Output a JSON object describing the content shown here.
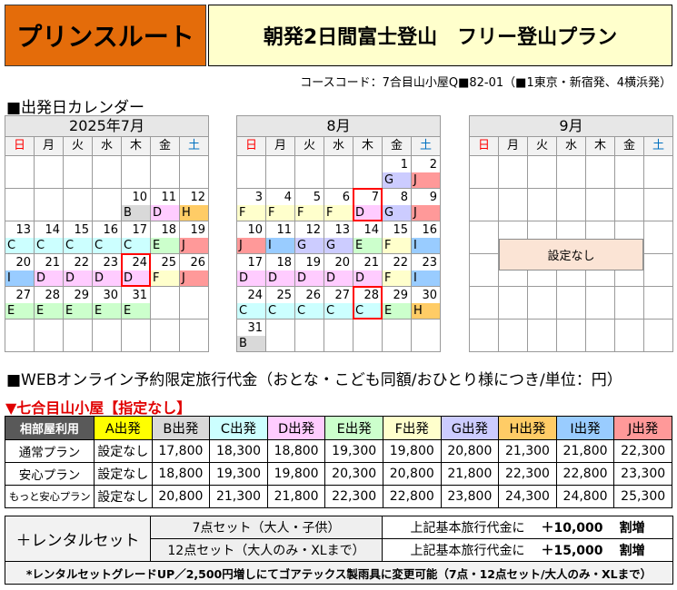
{
  "header": {
    "route_name": "プリンスルート",
    "route_color": "#e46c0a",
    "plan_title": "朝発2日間富士登山　フリー登山プラン",
    "plan_color": "#ffffcc",
    "course_code": "コースコード：7合目山小屋Q■82-01（■1東京・新宿発、4横浜発）"
  },
  "calendar": {
    "title": "■出発日カレンダー",
    "weekdays": [
      "日",
      "月",
      "火",
      "水",
      "木",
      "金",
      "土"
    ],
    "sunday_color": "#ff0000",
    "saturday_color": "#0070c0",
    "highlight_color": "#ff0000",
    "months": [
      {
        "title": "2025年7月",
        "weeks": [
          [
            null,
            null,
            null,
            null,
            null,
            null,
            null
          ],
          [
            null,
            null,
            null,
            null,
            {
              "day": 10,
              "code": "B"
            },
            {
              "day": 11,
              "code": "D"
            },
            {
              "day": 12,
              "code": "H"
            }
          ],
          [
            {
              "day": 13,
              "code": "C"
            },
            {
              "day": 14,
              "code": "C"
            },
            {
              "day": 15,
              "code": "C"
            },
            {
              "day": 16,
              "code": "C"
            },
            {
              "day": 17,
              "code": "C"
            },
            {
              "day": 18,
              "code": "E"
            },
            {
              "day": 19,
              "code": "J"
            }
          ],
          [
            {
              "day": 20,
              "code": "I"
            },
            {
              "day": 21,
              "code": "D"
            },
            {
              "day": 22,
              "code": "D"
            },
            {
              "day": 23,
              "code": "D"
            },
            {
              "day": 24,
              "code": "D",
              "highlighted": true
            },
            {
              "day": 25,
              "code": "F"
            },
            {
              "day": 26,
              "code": "J"
            }
          ],
          [
            {
              "day": 27,
              "code": "E"
            },
            {
              "day": 28,
              "code": "E"
            },
            {
              "day": 29,
              "code": "E"
            },
            {
              "day": 30,
              "code": "E"
            },
            {
              "day": 31,
              "code": "E"
            },
            null,
            null
          ],
          [
            null,
            null,
            null,
            null,
            null,
            null,
            null
          ]
        ]
      },
      {
        "title": "8月",
        "weeks": [
          [
            null,
            null,
            null,
            null,
            null,
            {
              "day": 1,
              "code": "G"
            },
            {
              "day": 2,
              "code": "J"
            }
          ],
          [
            {
              "day": 3,
              "code": "F"
            },
            {
              "day": 4,
              "code": "F"
            },
            {
              "day": 5,
              "code": "F"
            },
            {
              "day": 6,
              "code": "F"
            },
            {
              "day": 7,
              "code": "D",
              "highlighted": true
            },
            {
              "day": 8,
              "code": "G"
            },
            {
              "day": 9,
              "code": "J"
            }
          ],
          [
            {
              "day": 10,
              "code": "J"
            },
            {
              "day": 11,
              "code": "I"
            },
            {
              "day": 12,
              "code": "G"
            },
            {
              "day": 13,
              "code": "G"
            },
            {
              "day": 14,
              "code": "E"
            },
            {
              "day": 15,
              "code": "F"
            },
            {
              "day": 16,
              "code": "I"
            }
          ],
          [
            {
              "day": 17,
              "code": "D"
            },
            {
              "day": 18,
              "code": "D"
            },
            {
              "day": 19,
              "code": "D"
            },
            {
              "day": 20,
              "code": "D"
            },
            {
              "day": 21,
              "code": "D"
            },
            {
              "day": 22,
              "code": "F"
            },
            {
              "day": 23,
              "code": "I"
            }
          ],
          [
            {
              "day": 24,
              "code": "C"
            },
            {
              "day": 25,
              "code": "C"
            },
            {
              "day": 26,
              "code": "C"
            },
            {
              "day": 27,
              "code": "C"
            },
            {
              "day": 28,
              "code": "C",
              "highlighted": true
            },
            {
              "day": 29,
              "code": "E"
            },
            {
              "day": 30,
              "code": "H"
            }
          ],
          [
            {
              "day": 31,
              "code": "B"
            },
            null,
            null,
            null,
            null,
            null,
            null
          ]
        ]
      },
      {
        "title": "9月",
        "note": "設定なし"
      }
    ]
  },
  "code_colors": {
    "A": "#ffff00",
    "B": "#d9d9d9",
    "C": "#ccffff",
    "D": "#ffccff",
    "E": "#ccffcc",
    "F": "#ffffcc",
    "G": "#ccccff",
    "H": "#ffcc66",
    "I": "#99ccff",
    "J": "#ff9999"
  },
  "pricing": {
    "title": "■WEBオンライン予約限定旅行代金（おとな・こども同額/おひとり様につき/単位：円）",
    "subtitle": "▼七合目山小屋【指定なし】",
    "subtitle_color": "#e00000",
    "corner_label": "相部屋利用",
    "columns": [
      {
        "label": "A出発",
        "code": "A"
      },
      {
        "label": "B出発",
        "code": "B"
      },
      {
        "label": "C出発",
        "code": "C"
      },
      {
        "label": "D出発",
        "code": "D"
      },
      {
        "label": "E出発",
        "code": "E"
      },
      {
        "label": "F出発",
        "code": "F"
      },
      {
        "label": "G出発",
        "code": "G"
      },
      {
        "label": "H出発",
        "code": "H"
      },
      {
        "label": "I出発",
        "code": "I"
      },
      {
        "label": "J出発",
        "code": "J"
      }
    ],
    "rows": [
      {
        "label": "通常プラン",
        "values": [
          "設定なし",
          "17,800",
          "18,300",
          "18,800",
          "19,300",
          "19,800",
          "20,800",
          "21,300",
          "21,800",
          "22,300"
        ]
      },
      {
        "label": "安心プラン",
        "values": [
          "設定なし",
          "18,800",
          "19,300",
          "19,800",
          "20,300",
          "20,800",
          "21,800",
          "22,300",
          "22,800",
          "23,300"
        ]
      },
      {
        "label": "もっと安心プラン",
        "values": [
          "設定なし",
          "20,800",
          "21,300",
          "21,800",
          "22,300",
          "22,800",
          "23,800",
          "24,300",
          "24,800",
          "25,300"
        ]
      }
    ]
  },
  "rental": {
    "label": "＋レンタルセット",
    "options": [
      {
        "name": "7点セット（大人・子供）",
        "prefix": "上記基本旅行代金に",
        "amount": "＋10,000",
        "suffix": "割増"
      },
      {
        "name": "12点セット（大人のみ・XLまで）",
        "prefix": "上記基本旅行代金に",
        "amount": "＋15,000",
        "suffix": "割増"
      }
    ],
    "note": "*レンタルセットグレードUP／2,500円増しにてゴアテックス製雨具に変更可能（7点・12点セット/大人のみ・XLまで）"
  }
}
